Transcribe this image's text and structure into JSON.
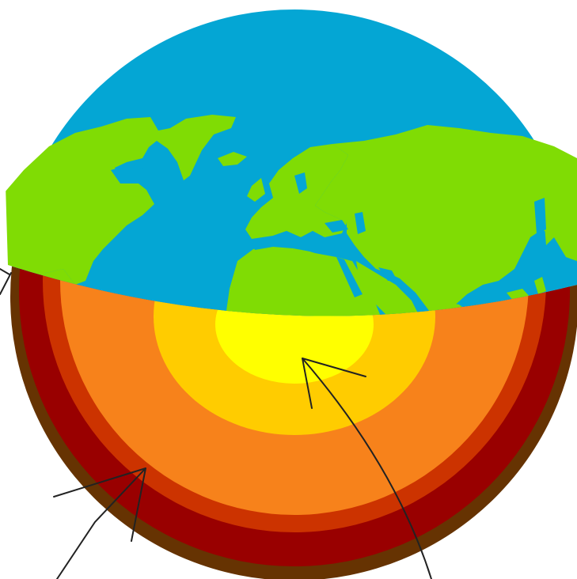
{
  "diagram": {
    "subject": "earth-cutaway",
    "colors": {
      "background": "#ffffff",
      "ocean": "#04a6d4",
      "land": "#80dc04",
      "crust": "#663302",
      "upper_mantle": "#990000",
      "lower_mantle": "#cc3300",
      "outer_core": "#f7821b",
      "inner_core_outer": "#ffcc00",
      "inner_core_center": "#ffff00",
      "pointer": "#222222"
    },
    "layers": [
      {
        "id": "crust",
        "color": "#663302"
      },
      {
        "id": "upper-mantle",
        "color": "#990000"
      },
      {
        "id": "lower-mantle",
        "color": "#cc3300"
      },
      {
        "id": "outer-core",
        "color": "#f7821b"
      },
      {
        "id": "inner-core",
        "color": "#ffcc00"
      },
      {
        "id": "core-center",
        "color": "#ffff00"
      }
    ],
    "pointers": [
      {
        "id": "pointer-left-top"
      },
      {
        "id": "pointer-left-bottom"
      },
      {
        "id": "pointer-center"
      }
    ]
  }
}
